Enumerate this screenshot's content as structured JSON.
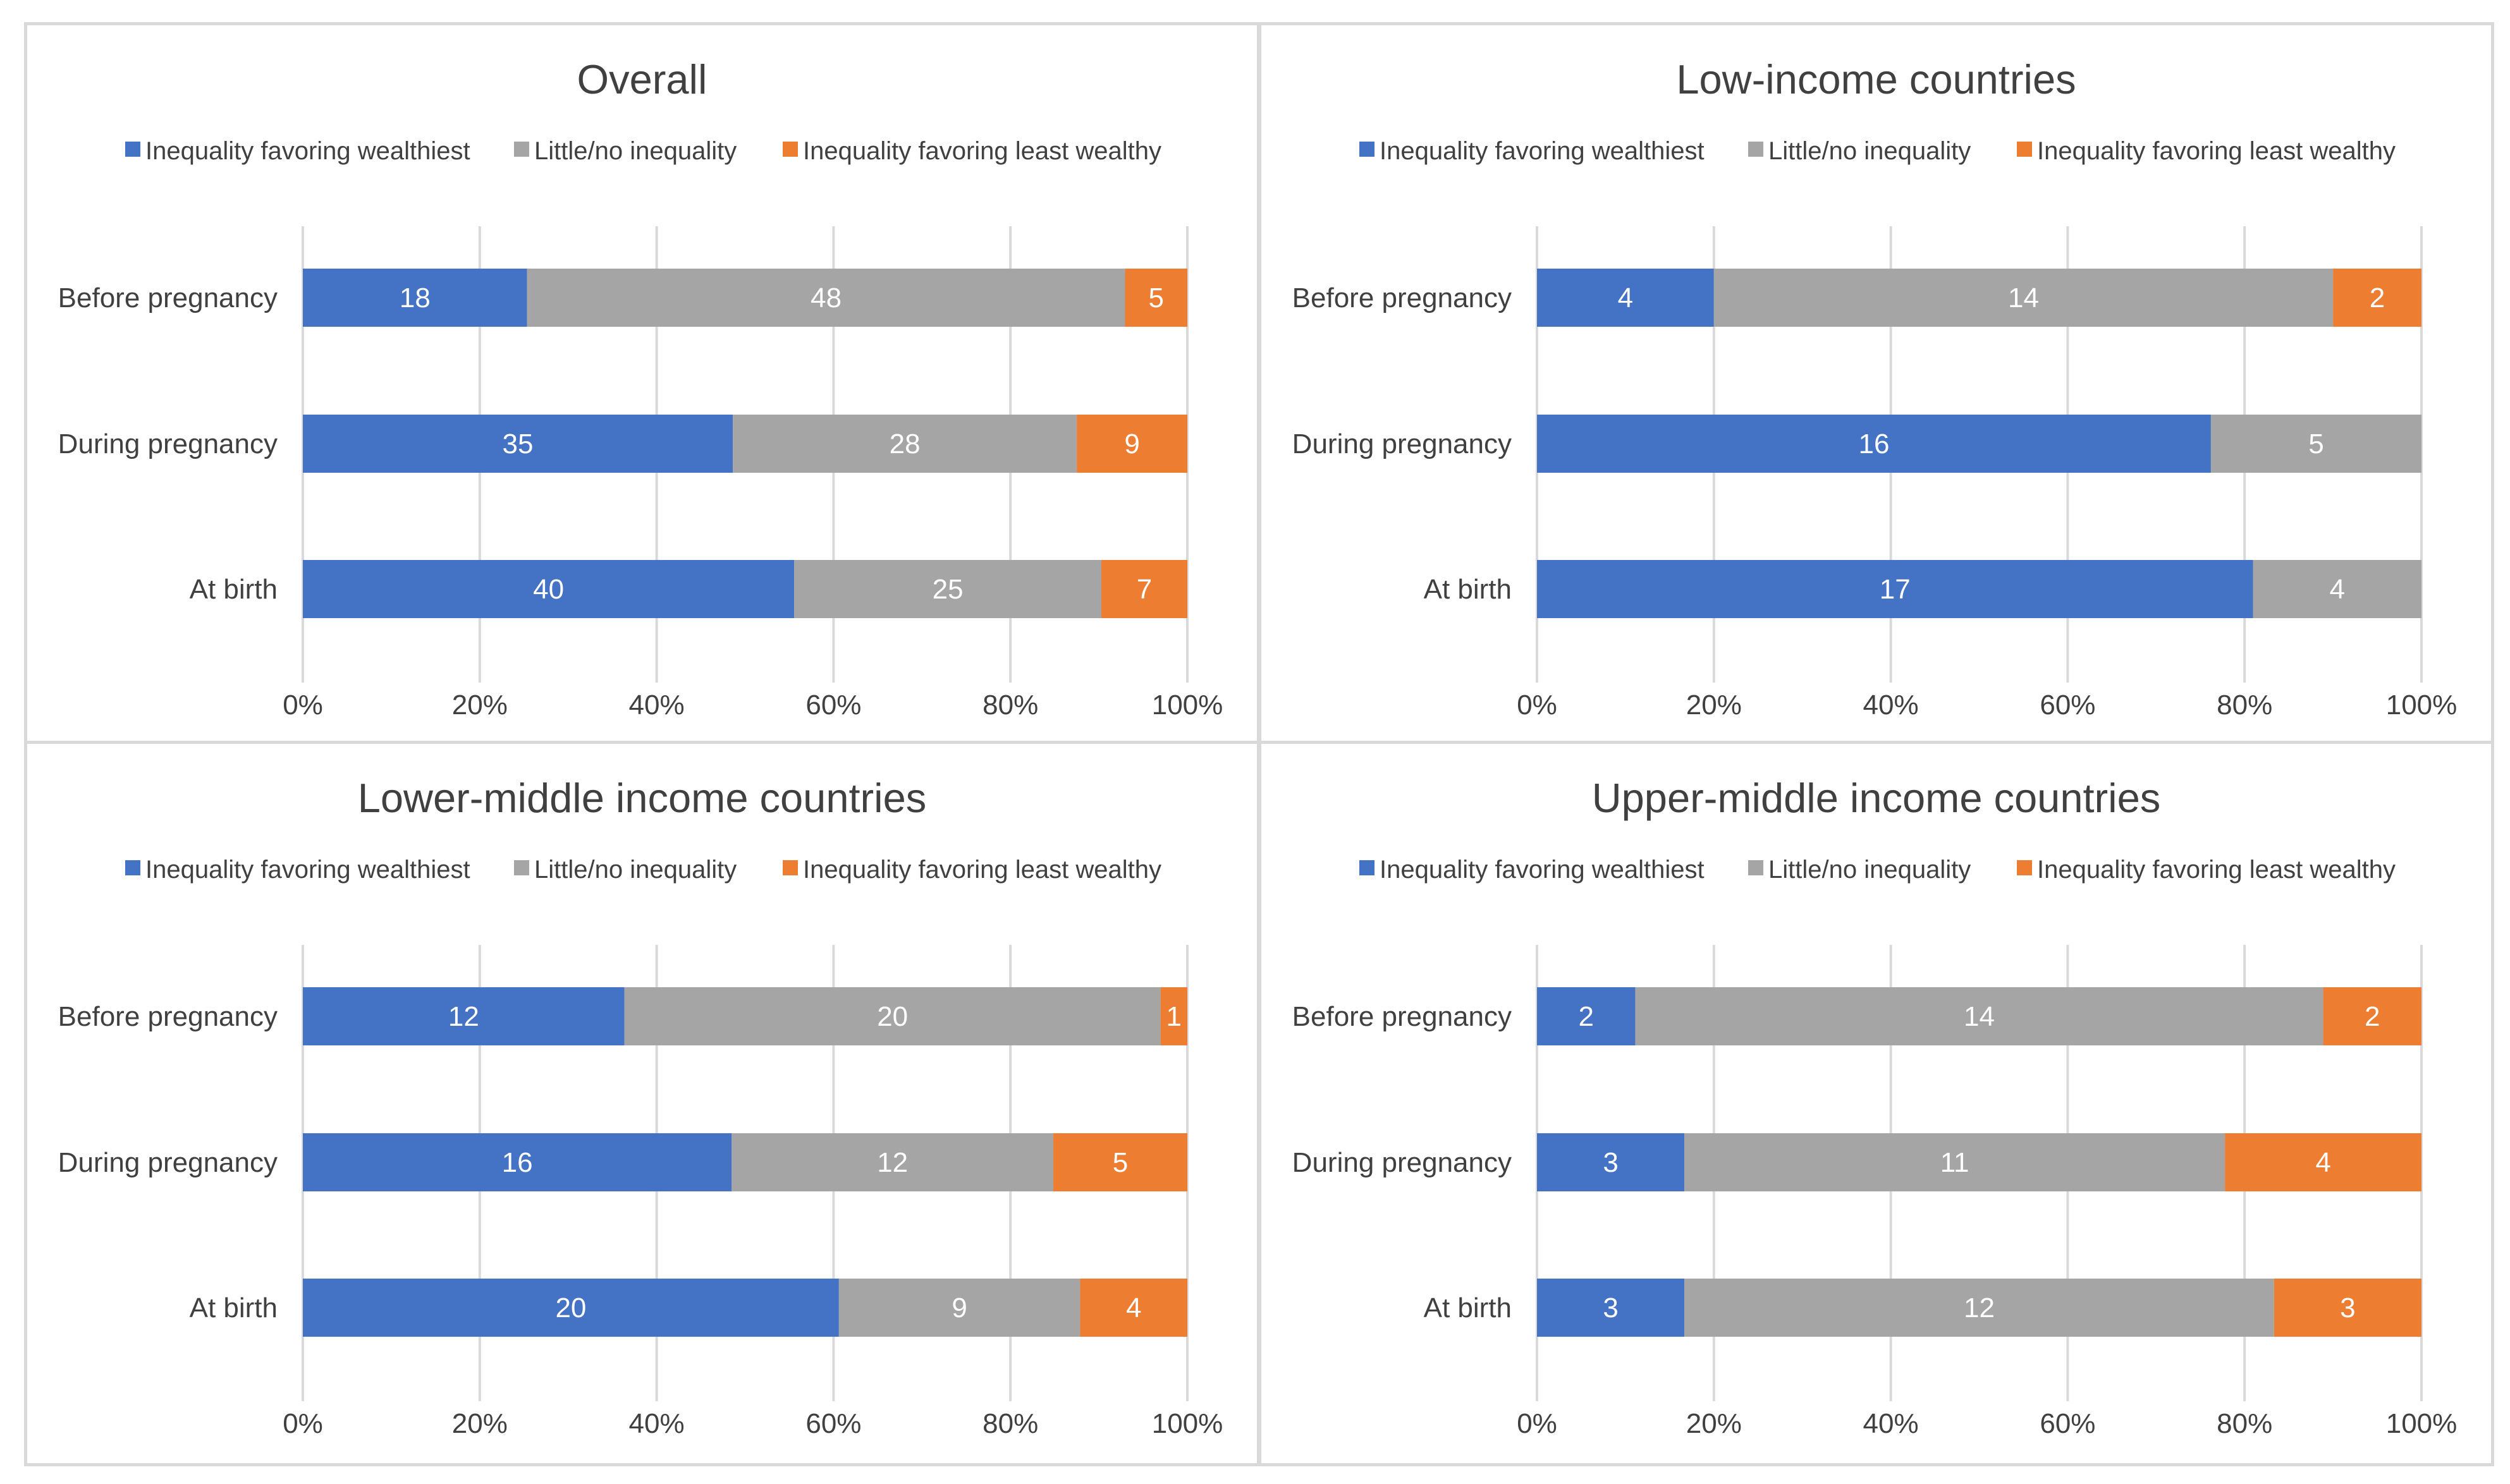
{
  "colors": {
    "wealthiest": "#4472c4",
    "none": "#a5a5a5",
    "least": "#ed7d31"
  },
  "legend": [
    {
      "key": "wealthiest",
      "label": "Inequality favoring wealthiest"
    },
    {
      "key": "none",
      "label": "Little/no inequality"
    },
    {
      "key": "least",
      "label": "Inequality favoring least wealthy"
    }
  ],
  "chart_data": [
    {
      "type": "bar",
      "orientation": "horizontal",
      "stacking": "percent",
      "title": "Overall",
      "categories": [
        "Before pregnancy",
        "During pregnancy",
        "At birth"
      ],
      "series": [
        {
          "name": "Inequality favoring wealthiest",
          "values": [
            18,
            35,
            40
          ]
        },
        {
          "name": "Little/no inequality",
          "values": [
            48,
            28,
            25
          ]
        },
        {
          "name": "Inequality favoring least wealthy",
          "values": [
            5,
            9,
            7
          ]
        }
      ],
      "xticks": [
        "0%",
        "20%",
        "40%",
        "60%",
        "80%",
        "100%"
      ],
      "xlim": [
        0,
        100
      ],
      "legend_position": "top"
    },
    {
      "type": "bar",
      "orientation": "horizontal",
      "stacking": "percent",
      "title": "Low-income countries",
      "categories": [
        "Before pregnancy",
        "During pregnancy",
        "At birth"
      ],
      "series": [
        {
          "name": "Inequality favoring wealthiest",
          "values": [
            4,
            16,
            17
          ]
        },
        {
          "name": "Little/no inequality",
          "values": [
            14,
            5,
            4
          ]
        },
        {
          "name": "Inequality favoring least wealthy",
          "values": [
            2,
            0,
            0
          ]
        }
      ],
      "xticks": [
        "0%",
        "20%",
        "40%",
        "60%",
        "80%",
        "100%"
      ],
      "xlim": [
        0,
        100
      ],
      "legend_position": "top"
    },
    {
      "type": "bar",
      "orientation": "horizontal",
      "stacking": "percent",
      "title": "Lower-middle income countries",
      "categories": [
        "Before pregnancy",
        "During pregnancy",
        "At birth"
      ],
      "series": [
        {
          "name": "Inequality favoring wealthiest",
          "values": [
            12,
            16,
            20
          ]
        },
        {
          "name": "Little/no inequality",
          "values": [
            20,
            12,
            9
          ]
        },
        {
          "name": "Inequality favoring least wealthy",
          "values": [
            1,
            5,
            4
          ]
        }
      ],
      "xticks": [
        "0%",
        "20%",
        "40%",
        "60%",
        "80%",
        "100%"
      ],
      "xlim": [
        0,
        100
      ],
      "legend_position": "top"
    },
    {
      "type": "bar",
      "orientation": "horizontal",
      "stacking": "percent",
      "title": "Upper-middle income countries",
      "categories": [
        "Before pregnancy",
        "During pregnancy",
        "At birth"
      ],
      "series": [
        {
          "name": "Inequality favoring wealthiest",
          "values": [
            2,
            3,
            3
          ]
        },
        {
          "name": "Little/no inequality",
          "values": [
            14,
            11,
            12
          ]
        },
        {
          "name": "Inequality favoring least wealthy",
          "values": [
            2,
            4,
            3
          ]
        }
      ],
      "xticks": [
        "0%",
        "20%",
        "40%",
        "60%",
        "80%",
        "100%"
      ],
      "xlim": [
        0,
        100
      ],
      "legend_position": "top"
    }
  ]
}
